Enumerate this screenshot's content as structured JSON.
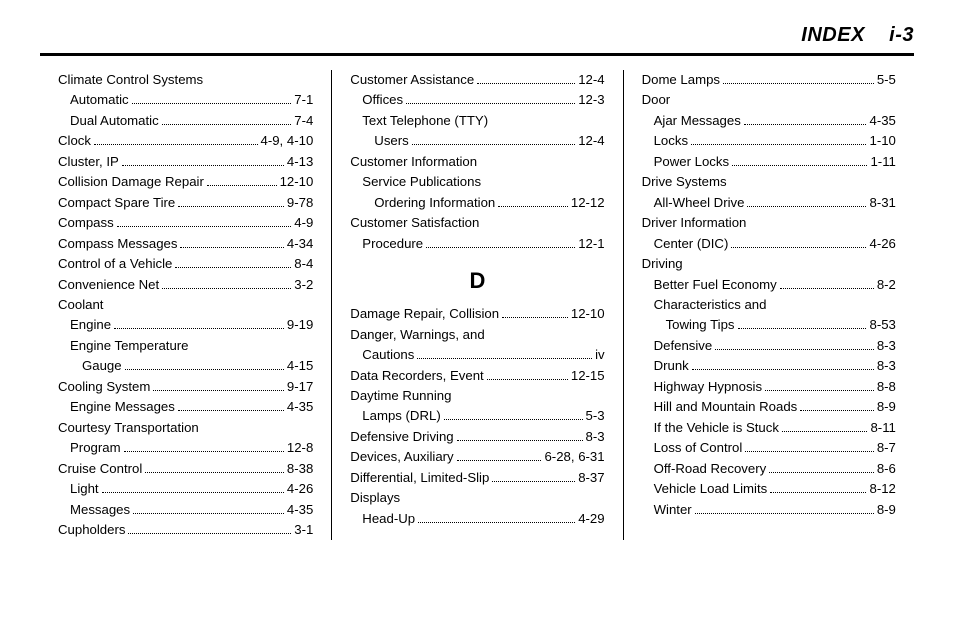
{
  "header": {
    "title": "INDEX",
    "pagenum": "i-3"
  },
  "columns": [
    [
      {
        "label": "Climate Control Systems",
        "indent": 0
      },
      {
        "label": "Automatic",
        "page": "7-1",
        "indent": 1
      },
      {
        "label": "Dual Automatic",
        "page": "7-4",
        "indent": 1
      },
      {
        "label": "Clock",
        "page": "4-9, 4-10",
        "indent": 0
      },
      {
        "label": "Cluster, IP",
        "page": "4-13",
        "indent": 0
      },
      {
        "label": "Collision Damage Repair",
        "page": "12-10",
        "indent": 0
      },
      {
        "label": "Compact Spare Tire",
        "page": "9-78",
        "indent": 0
      },
      {
        "label": "Compass",
        "page": "4-9",
        "indent": 0
      },
      {
        "label": "Compass Messages",
        "page": "4-34",
        "indent": 0
      },
      {
        "label": "Control of a Vehicle",
        "page": "8-4",
        "indent": 0
      },
      {
        "label": "Convenience Net",
        "page": "3-2",
        "indent": 0
      },
      {
        "label": "Coolant",
        "indent": 0
      },
      {
        "label": "Engine",
        "page": "9-19",
        "indent": 1
      },
      {
        "label": "Engine Temperature",
        "indent": 1
      },
      {
        "label": "Gauge",
        "page": "4-15",
        "indent": 2
      },
      {
        "label": "Cooling System",
        "page": "9-17",
        "indent": 0
      },
      {
        "label": "Engine Messages",
        "page": "4-35",
        "indent": 1
      },
      {
        "label": "Courtesy Transportation",
        "indent": 0
      },
      {
        "label": "Program",
        "page": "12-8",
        "indent": 1
      },
      {
        "label": "Cruise Control",
        "page": "8-38",
        "indent": 0
      },
      {
        "label": "Light",
        "page": "4-26",
        "indent": 1
      },
      {
        "label": "Messages",
        "page": "4-35",
        "indent": 1
      },
      {
        "label": "Cupholders",
        "page": "3-1",
        "indent": 0
      }
    ],
    [
      {
        "label": "Customer Assistance",
        "page": "12-4",
        "indent": 0
      },
      {
        "label": "Offices",
        "page": "12-3",
        "indent": 1
      },
      {
        "label": "Text Telephone (TTY)",
        "indent": 1
      },
      {
        "label": "Users",
        "page": "12-4",
        "indent": 2
      },
      {
        "label": "Customer Information",
        "indent": 0
      },
      {
        "label": "Service Publications",
        "indent": 1
      },
      {
        "label": "Ordering Information",
        "page": "12-12",
        "indent": 2
      },
      {
        "label": "Customer Satisfaction",
        "indent": 0
      },
      {
        "label": "Procedure",
        "page": "12-1",
        "indent": 1
      },
      {
        "section": "D"
      },
      {
        "label": "Damage Repair, Collision",
        "page": "12-10",
        "indent": 0
      },
      {
        "label": "Danger, Warnings, and",
        "indent": 0
      },
      {
        "label": "Cautions",
        "page": "iv",
        "indent": 1
      },
      {
        "label": "Data Recorders, Event",
        "page": "12-15",
        "indent": 0
      },
      {
        "label": "Daytime Running",
        "indent": 0
      },
      {
        "label": "Lamps (DRL)",
        "page": "5-3",
        "indent": 1
      },
      {
        "label": "Defensive Driving",
        "page": "8-3",
        "indent": 0
      },
      {
        "label": "Devices, Auxiliary",
        "page": "6-28, 6-31",
        "indent": 0
      },
      {
        "label": "Differential, Limited-Slip",
        "page": "8-37",
        "indent": 0
      },
      {
        "label": "Displays",
        "indent": 0
      },
      {
        "label": "Head-Up",
        "page": "4-29",
        "indent": 1
      }
    ],
    [
      {
        "label": "Dome Lamps",
        "page": "5-5",
        "indent": 0
      },
      {
        "label": "Door",
        "indent": 0
      },
      {
        "label": "Ajar Messages",
        "page": "4-35",
        "indent": 1
      },
      {
        "label": "Locks",
        "page": "1-10",
        "indent": 1
      },
      {
        "label": "Power Locks",
        "page": "1-11",
        "indent": 1
      },
      {
        "label": "Drive Systems",
        "indent": 0
      },
      {
        "label": "All-Wheel Drive",
        "page": "8-31",
        "indent": 1
      },
      {
        "label": "Driver Information",
        "indent": 0
      },
      {
        "label": "Center (DIC)",
        "page": "4-26",
        "indent": 1
      },
      {
        "label": "Driving",
        "indent": 0
      },
      {
        "label": "Better Fuel Economy",
        "page": "8-2",
        "indent": 1
      },
      {
        "label": "Characteristics and",
        "indent": 1
      },
      {
        "label": "Towing Tips",
        "page": "8-53",
        "indent": 2
      },
      {
        "label": "Defensive",
        "page": "8-3",
        "indent": 1
      },
      {
        "label": "Drunk",
        "page": "8-3",
        "indent": 1
      },
      {
        "label": "Highway Hypnosis",
        "page": "8-8",
        "indent": 1
      },
      {
        "label": "Hill and Mountain Roads",
        "page": "8-9",
        "indent": 1
      },
      {
        "label": "If the Vehicle is Stuck",
        "page": "8-11",
        "indent": 1
      },
      {
        "label": "Loss of Control",
        "page": "8-7",
        "indent": 1
      },
      {
        "label": "Off-Road Recovery",
        "page": "8-6",
        "indent": 1
      },
      {
        "label": "Vehicle Load Limits",
        "page": "8-12",
        "indent": 1
      },
      {
        "label": "Winter",
        "page": "8-9",
        "indent": 1
      }
    ]
  ]
}
